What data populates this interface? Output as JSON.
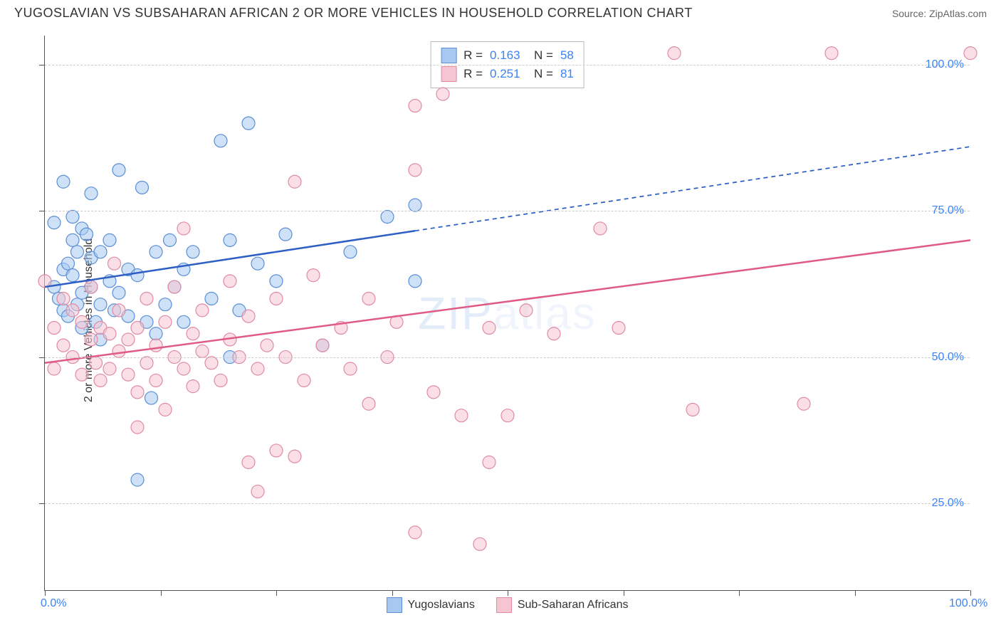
{
  "header": {
    "title": "YUGOSLAVIAN VS SUBSAHARAN AFRICAN 2 OR MORE VEHICLES IN HOUSEHOLD CORRELATION CHART",
    "source": "Source: ZipAtlas.com"
  },
  "chart": {
    "type": "scatter",
    "ylabel": "2 or more Vehicles in Household",
    "watermark": "ZIPatlas",
    "background_color": "#ffffff",
    "grid_color": "#cccccc",
    "axis_color": "#555555",
    "xlim": [
      0,
      100
    ],
    "ylim": [
      10,
      105
    ],
    "xticks": [
      0,
      12.5,
      25,
      37.5,
      50,
      62.5,
      75,
      87.5,
      100
    ],
    "xtick_labels": {
      "0": "0.0%",
      "100": "100.0%"
    },
    "yticks": [
      25,
      50,
      75,
      100
    ],
    "ytick_labels": {
      "25": "25.0%",
      "50": "50.0%",
      "75": "75.0%",
      "100": "100.0%"
    },
    "label_color": "#3b82f6",
    "label_fontsize": 16,
    "marker_radius": 9,
    "marker_opacity": 0.55,
    "series": [
      {
        "name": "Yugoslavians",
        "fill": "#a8c8f0",
        "stroke": "#5b8fd6",
        "R": "0.163",
        "N": "58",
        "trend": {
          "color": "#2d5fc4",
          "width": 2.5,
          "y_at_x0": 62,
          "y_at_x100": 86,
          "solid_until_x": 40
        },
        "points": [
          [
            1,
            73
          ],
          [
            1,
            62
          ],
          [
            1.5,
            60
          ],
          [
            2,
            65
          ],
          [
            2,
            58
          ],
          [
            2,
            80
          ],
          [
            2.5,
            66
          ],
          [
            2.5,
            57
          ],
          [
            3,
            70
          ],
          [
            3,
            74
          ],
          [
            3,
            64
          ],
          [
            3.5,
            68
          ],
          [
            3.5,
            59
          ],
          [
            4,
            72
          ],
          [
            4,
            61
          ],
          [
            4,
            55
          ],
          [
            4.5,
            71
          ],
          [
            5,
            78
          ],
          [
            5,
            67
          ],
          [
            5,
            62
          ],
          [
            5.5,
            56
          ],
          [
            6,
            59
          ],
          [
            6,
            53
          ],
          [
            6,
            68
          ],
          [
            7,
            70
          ],
          [
            7,
            63
          ],
          [
            7.5,
            58
          ],
          [
            8,
            61
          ],
          [
            8,
            82
          ],
          [
            9,
            57
          ],
          [
            9,
            65
          ],
          [
            10,
            29
          ],
          [
            10,
            64
          ],
          [
            10.5,
            79
          ],
          [
            11,
            56
          ],
          [
            11.5,
            43
          ],
          [
            12,
            68
          ],
          [
            12,
            54
          ],
          [
            13,
            59
          ],
          [
            13.5,
            70
          ],
          [
            14,
            62
          ],
          [
            15,
            56
          ],
          [
            15,
            65
          ],
          [
            16,
            68
          ],
          [
            18,
            60
          ],
          [
            19,
            87
          ],
          [
            20,
            50
          ],
          [
            20,
            70
          ],
          [
            21,
            58
          ],
          [
            22,
            90
          ],
          [
            23,
            66
          ],
          [
            25,
            63
          ],
          [
            26,
            71
          ],
          [
            30,
            52
          ],
          [
            33,
            68
          ],
          [
            37,
            74
          ],
          [
            40,
            63
          ],
          [
            40,
            76
          ]
        ]
      },
      {
        "name": "Sub-Saharan Africans",
        "fill": "#f5c6d1",
        "stroke": "#e08ba3",
        "R": "0.251",
        "N": "81",
        "trend": {
          "color": "#e05a85",
          "width": 2.5,
          "y_at_x0": 49,
          "y_at_x100": 70,
          "solid_until_x": 100
        },
        "points": [
          [
            0,
            63
          ],
          [
            1,
            55
          ],
          [
            1,
            48
          ],
          [
            2,
            60
          ],
          [
            2,
            52
          ],
          [
            3,
            50
          ],
          [
            3,
            58
          ],
          [
            4,
            56
          ],
          [
            4,
            47
          ],
          [
            5,
            62
          ],
          [
            5,
            53
          ],
          [
            5.5,
            49
          ],
          [
            6,
            55
          ],
          [
            6,
            46
          ],
          [
            7,
            48
          ],
          [
            7,
            54
          ],
          [
            7.5,
            66
          ],
          [
            8,
            51
          ],
          [
            8,
            58
          ],
          [
            9,
            47
          ],
          [
            9,
            53
          ],
          [
            10,
            44
          ],
          [
            10,
            55
          ],
          [
            10,
            38
          ],
          [
            11,
            60
          ],
          [
            11,
            49
          ],
          [
            12,
            52
          ],
          [
            12,
            46
          ],
          [
            13,
            41
          ],
          [
            13,
            56
          ],
          [
            14,
            50
          ],
          [
            14,
            62
          ],
          [
            15,
            48
          ],
          [
            15,
            72
          ],
          [
            16,
            54
          ],
          [
            16,
            45
          ],
          [
            17,
            51
          ],
          [
            17,
            58
          ],
          [
            18,
            49
          ],
          [
            19,
            46
          ],
          [
            20,
            53
          ],
          [
            20,
            63
          ],
          [
            21,
            50
          ],
          [
            22,
            32
          ],
          [
            22,
            57
          ],
          [
            23,
            27
          ],
          [
            23,
            48
          ],
          [
            24,
            52
          ],
          [
            25,
            34
          ],
          [
            25,
            60
          ],
          [
            26,
            50
          ],
          [
            27,
            33
          ],
          [
            27,
            80
          ],
          [
            28,
            46
          ],
          [
            29,
            64
          ],
          [
            30,
            52
          ],
          [
            32,
            55
          ],
          [
            33,
            48
          ],
          [
            35,
            42
          ],
          [
            35,
            60
          ],
          [
            37,
            50
          ],
          [
            38,
            56
          ],
          [
            40,
            20
          ],
          [
            40,
            82
          ],
          [
            40,
            93
          ],
          [
            42,
            44
          ],
          [
            43,
            95
          ],
          [
            45,
            40
          ],
          [
            47,
            18
          ],
          [
            48,
            32
          ],
          [
            48,
            55
          ],
          [
            50,
            40
          ],
          [
            52,
            58
          ],
          [
            55,
            54
          ],
          [
            60,
            72
          ],
          [
            62,
            55
          ],
          [
            68,
            102
          ],
          [
            70,
            41
          ],
          [
            82,
            42
          ],
          [
            85,
            102
          ],
          [
            100,
            102
          ]
        ]
      }
    ],
    "bottom_legend": [
      {
        "label": "Yugoslavians",
        "fill": "#a8c8f0",
        "stroke": "#5b8fd6"
      },
      {
        "label": "Sub-Saharan Africans",
        "fill": "#f5c6d1",
        "stroke": "#e08ba3"
      }
    ]
  }
}
